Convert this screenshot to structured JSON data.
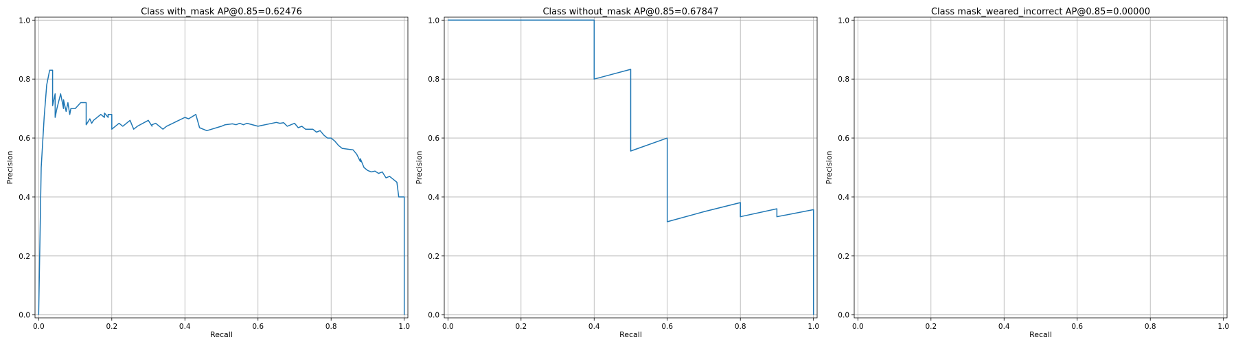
{
  "chart_data": [
    {
      "type": "line",
      "title": "Class with_mask AP@0.85=0.62476",
      "xlabel": "Recall",
      "ylabel": "Precision",
      "xlim": [
        -0.01,
        1.01
      ],
      "ylim": [
        -0.01,
        1.01
      ],
      "xticks": [
        "0.0",
        "0.2",
        "0.4",
        "0.6",
        "0.8",
        "1.0"
      ],
      "yticks": [
        "0.0",
        "0.2",
        "0.4",
        "0.6",
        "0.8",
        "1.0"
      ],
      "grid": true,
      "color": "#1f77b4",
      "series": [
        {
          "x": [
            0.0,
            0.007,
            0.015,
            0.022,
            0.03,
            0.038,
            0.038,
            0.045,
            0.045,
            0.05,
            0.06,
            0.068,
            0.068,
            0.075,
            0.08,
            0.085,
            0.088,
            0.1,
            0.115,
            0.13,
            0.13,
            0.14,
            0.145,
            0.15,
            0.17,
            0.18,
            0.18,
            0.19,
            0.19,
            0.2,
            0.2,
            0.22,
            0.23,
            0.25,
            0.26,
            0.27,
            0.3,
            0.31,
            0.31,
            0.32,
            0.34,
            0.35,
            0.4,
            0.41,
            0.43,
            0.44,
            0.45,
            0.46,
            0.5,
            0.51,
            0.53,
            0.54,
            0.55,
            0.56,
            0.57,
            0.6,
            0.65,
            0.66,
            0.67,
            0.68,
            0.7,
            0.71,
            0.72,
            0.73,
            0.75,
            0.76,
            0.77,
            0.78,
            0.79,
            0.8,
            0.81,
            0.82,
            0.83,
            0.84,
            0.86,
            0.87,
            0.88,
            0.88,
            0.89,
            0.9,
            0.91,
            0.92,
            0.93,
            0.94,
            0.95,
            0.96,
            0.97,
            0.98,
            0.985,
            0.99,
            0.99,
            1.0,
            1.0
          ],
          "y": [
            0.0,
            0.5,
            0.67,
            0.78,
            0.83,
            0.83,
            0.71,
            0.75,
            0.67,
            0.7,
            0.75,
            0.7,
            0.73,
            0.69,
            0.72,
            0.68,
            0.7,
            0.7,
            0.72,
            0.72,
            0.645,
            0.665,
            0.65,
            0.66,
            0.68,
            0.67,
            0.685,
            0.67,
            0.68,
            0.68,
            0.63,
            0.65,
            0.64,
            0.66,
            0.63,
            0.64,
            0.66,
            0.64,
            0.645,
            0.65,
            0.63,
            0.64,
            0.67,
            0.665,
            0.68,
            0.635,
            0.63,
            0.625,
            0.64,
            0.645,
            0.648,
            0.645,
            0.65,
            0.645,
            0.65,
            0.64,
            0.653,
            0.65,
            0.652,
            0.64,
            0.65,
            0.635,
            0.64,
            0.63,
            0.63,
            0.62,
            0.625,
            0.61,
            0.6,
            0.6,
            0.59,
            0.575,
            0.565,
            0.563,
            0.56,
            0.545,
            0.52,
            0.53,
            0.5,
            0.49,
            0.485,
            0.488,
            0.48,
            0.485,
            0.465,
            0.47,
            0.46,
            0.45,
            0.4,
            0.4,
            0.4,
            0.4,
            0.0
          ]
        }
      ]
    },
    {
      "type": "line",
      "title": "Class without_mask AP@0.85=0.67847",
      "xlabel": "Recall",
      "ylabel": "Precision",
      "xlim": [
        -0.01,
        1.01
      ],
      "ylim": [
        -0.01,
        1.01
      ],
      "xticks": [
        "0.0",
        "0.2",
        "0.4",
        "0.6",
        "0.8",
        "1.0"
      ],
      "yticks": [
        "0.0",
        "0.2",
        "0.4",
        "0.6",
        "0.8",
        "1.0"
      ],
      "grid": true,
      "color": "#1f77b4",
      "series": [
        {
          "x": [
            0.0,
            0.4,
            0.4,
            0.5,
            0.5,
            0.6,
            0.6,
            0.7,
            0.8,
            0.8,
            0.9,
            0.9,
            1.0,
            1.0
          ],
          "y": [
            1.0,
            1.0,
            0.8,
            0.833,
            0.556,
            0.6,
            0.316,
            0.35,
            0.381,
            0.333,
            0.36,
            0.333,
            0.357,
            0.0
          ]
        }
      ]
    },
    {
      "type": "line",
      "title": "Class mask_weared_incorrect AP@0.85=0.00000",
      "xlabel": "Recall",
      "ylabel": "Precision",
      "xlim": [
        -0.01,
        1.01
      ],
      "ylim": [
        -0.01,
        1.01
      ],
      "xticks": [
        "0.0",
        "0.2",
        "0.4",
        "0.6",
        "0.8",
        "1.0"
      ],
      "yticks": [
        "0.0",
        "0.2",
        "0.4",
        "0.6",
        "0.8",
        "1.0"
      ],
      "grid": true,
      "color": "#1f77b4",
      "series": []
    }
  ]
}
